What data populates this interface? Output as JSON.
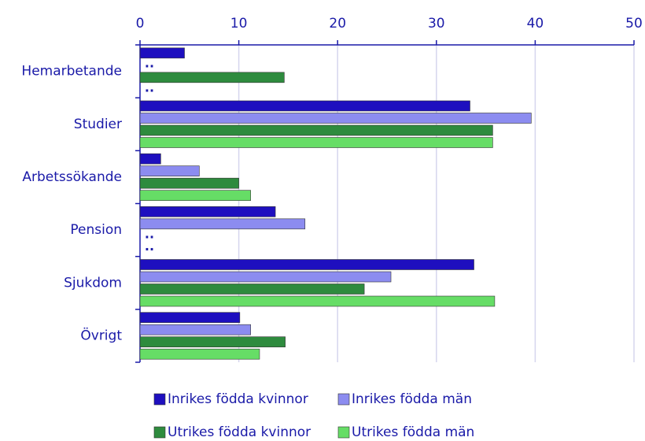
{
  "chart_data": {
    "type": "hbar",
    "categories": [
      "Hemarbetande",
      "Studier",
      "Arbetssökande",
      "Pension",
      "Sjukdom",
      "Övrigt"
    ],
    "series": [
      {
        "name": "Inrikes födda kvinnor",
        "color": "#1e0fbf",
        "values": [
          4.5,
          33.4,
          2.1,
          13.7,
          33.8,
          10.1
        ],
        "value_labels": [
          null,
          null,
          null,
          null,
          null,
          null
        ]
      },
      {
        "name": "Inrikes födda män",
        "color": "#8c8cf0",
        "values": [
          null,
          39.6,
          6.0,
          16.7,
          25.4,
          11.2
        ],
        "value_labels": [
          "..",
          null,
          null,
          null,
          null,
          null
        ]
      },
      {
        "name": "Utrikes födda kvinnor",
        "color": "#2e8b3e",
        "values": [
          14.6,
          35.7,
          10.0,
          null,
          22.7,
          14.7
        ],
        "value_labels": [
          null,
          null,
          null,
          "..",
          null,
          null
        ]
      },
      {
        "name": "Utrikes födda män",
        "color": "#66dd66",
        "values": [
          null,
          35.7,
          11.2,
          null,
          35.9,
          12.1
        ],
        "value_labels": [
          "..",
          null,
          null,
          "..",
          null,
          null
        ]
      }
    ],
    "xlim": [
      0,
      50
    ],
    "xticks": [
      0,
      10,
      20,
      30,
      40,
      50
    ],
    "grid": true,
    "legend": "bottom"
  }
}
